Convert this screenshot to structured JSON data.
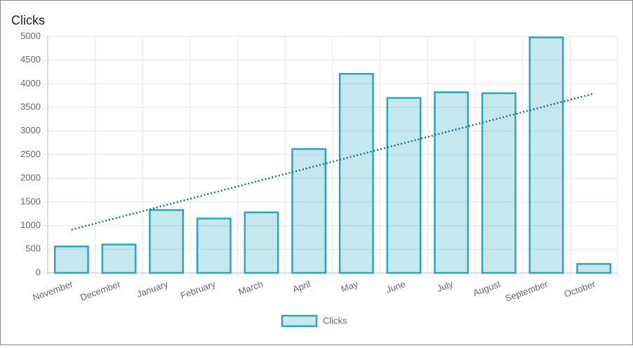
{
  "chart_data": {
    "type": "bar",
    "title": "Clicks",
    "categories": [
      "November",
      "December",
      "January",
      "February",
      "March",
      "April",
      "May",
      "June",
      "July",
      "August",
      "September",
      "October"
    ],
    "series": [
      {
        "name": "Clicks",
        "color": "#29a6bf",
        "values": [
          560,
          600,
          1330,
          1150,
          1280,
          2620,
          4210,
          3700,
          3820,
          3800,
          4980,
          190
        ]
      }
    ],
    "ylim": [
      0,
      5000
    ],
    "yticks": [
      0,
      500,
      1000,
      1500,
      2000,
      2500,
      3000,
      3500,
      4000,
      4500,
      5000
    ],
    "grid": true,
    "trendline": true,
    "trendline_color": "#1f6f8b",
    "legend": "bottom"
  }
}
